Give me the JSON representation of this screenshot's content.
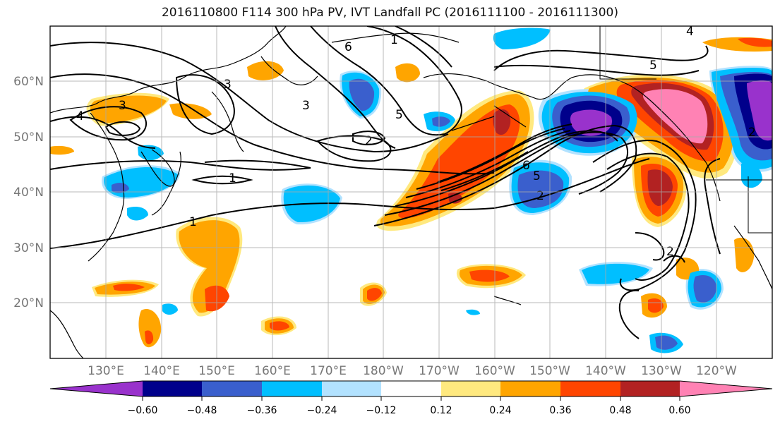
{
  "title": "2016110800 F114 300 hPa PV, IVT Landfall PC (2016111100 - 2016111300)",
  "map": {
    "lon_labels": [
      "130°E",
      "140°E",
      "150°E",
      "160°E",
      "170°E",
      "180°W",
      "170°W",
      "160°W",
      "150°W",
      "140°W",
      "130°W",
      "120°W"
    ],
    "lat_labels": [
      "20°N",
      "30°N",
      "40°N",
      "50°N",
      "60°N"
    ],
    "contour_labels": [
      "4",
      "3",
      "3",
      "6",
      "1",
      "3",
      "5",
      "2",
      "1",
      "1",
      "6",
      "5",
      "2",
      "5",
      "4",
      "2",
      "2"
    ]
  },
  "colorbar": {
    "ticks": [
      "−0.60",
      "−0.48",
      "−0.36",
      "−0.24",
      "−0.12",
      "0.12",
      "0.24",
      "0.36",
      "0.48",
      "0.60"
    ],
    "colors": [
      "#9932cc",
      "#00008b",
      "#3a5fcd",
      "#00bfff",
      "#b2e2ff",
      "#ffffff",
      "#ffe97f",
      "#ffa500",
      "#ff4500",
      "#b22222",
      "#ff82b4"
    ]
  },
  "colors": {
    "negative_outer": "#00bfff",
    "positive_outer": "#ffa500",
    "grid": "#aaaaaa",
    "contour": "#000000"
  }
}
